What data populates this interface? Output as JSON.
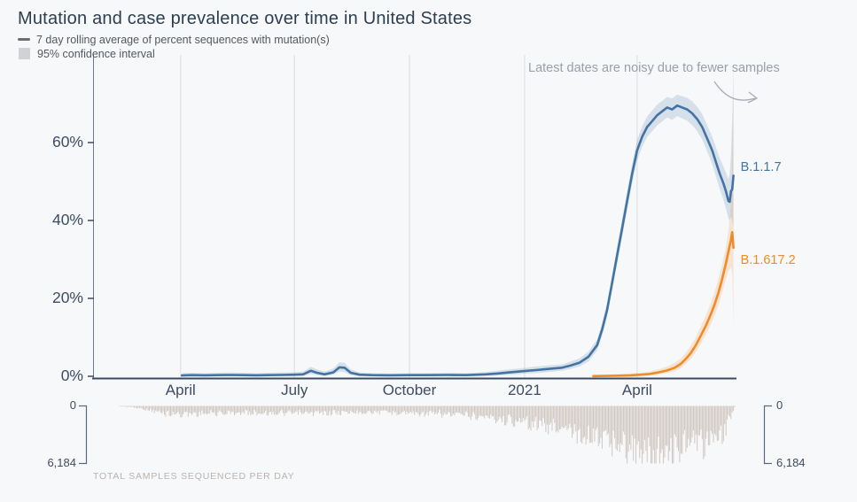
{
  "title": "Mutation and case prevalence over time in United States",
  "legend": {
    "rolling_average": "7 day rolling average of percent sequences with mutation(s)",
    "confidence_interval": "95% confidence interval"
  },
  "annotation": "Latest dates are noisy due to fewer samples",
  "chart_data": {
    "type": "line",
    "title": "Mutation and case prevalence over time in United States",
    "x_axis": {
      "ticks": [
        {
          "date": "2020-04-01",
          "label": "April"
        },
        {
          "date": "2020-07-01",
          "label": "July"
        },
        {
          "date": "2020-10-01",
          "label": "October"
        },
        {
          "date": "2021-01-01",
          "label": "2021"
        },
        {
          "date": "2021-04-01",
          "label": "April"
        }
      ],
      "range": [
        "2020-01-22",
        "2021-06-18"
      ]
    },
    "y_axis": {
      "unit": "percent of sequences",
      "ylim": [
        0,
        80
      ],
      "ticks": [
        {
          "value": 0,
          "label": "0%"
        },
        {
          "value": 20,
          "label": "20%"
        },
        {
          "value": 40,
          "label": "40%"
        },
        {
          "value": 60,
          "label": "60%"
        }
      ]
    },
    "series": [
      {
        "name": "B.1.1.7",
        "color": "#4273a3",
        "ci_color": "rgba(66,115,163,0.18)",
        "points": [
          [
            "2020-04-02",
            0.2,
            0,
            0.8
          ],
          [
            "2020-04-10",
            0.3,
            0,
            0.9
          ],
          [
            "2020-04-20",
            0.25,
            0,
            0.8
          ],
          [
            "2020-05-01",
            0.3,
            0,
            0.9
          ],
          [
            "2020-05-10",
            0.35,
            0,
            1.0
          ],
          [
            "2020-05-20",
            0.3,
            0,
            0.9
          ],
          [
            "2020-06-01",
            0.25,
            0,
            0.8
          ],
          [
            "2020-06-10",
            0.3,
            0,
            0.9
          ],
          [
            "2020-06-20",
            0.35,
            0,
            1.0
          ],
          [
            "2020-07-01",
            0.4,
            0,
            1.1
          ],
          [
            "2020-07-08",
            0.5,
            0.1,
            1.2
          ],
          [
            "2020-07-14",
            1.4,
            0.6,
            2.4
          ],
          [
            "2020-07-19",
            0.9,
            0.3,
            1.8
          ],
          [
            "2020-07-25",
            0.5,
            0.1,
            1.2
          ],
          [
            "2020-08-01",
            1.0,
            0.4,
            2.0
          ],
          [
            "2020-08-06",
            2.3,
            1.2,
            3.6
          ],
          [
            "2020-08-10",
            2.2,
            1.1,
            3.5
          ],
          [
            "2020-08-15",
            0.9,
            0.3,
            1.8
          ],
          [
            "2020-08-22",
            0.4,
            0,
            1.0
          ],
          [
            "2020-09-01",
            0.3,
            0,
            0.8
          ],
          [
            "2020-09-15",
            0.25,
            0,
            0.7
          ],
          [
            "2020-10-01",
            0.3,
            0,
            0.8
          ],
          [
            "2020-10-15",
            0.3,
            0,
            0.8
          ],
          [
            "2020-11-01",
            0.35,
            0,
            0.9
          ],
          [
            "2020-11-15",
            0.3,
            0,
            0.8
          ],
          [
            "2020-12-01",
            0.5,
            0.1,
            1.1
          ],
          [
            "2020-12-10",
            0.7,
            0.2,
            1.4
          ],
          [
            "2020-12-20",
            1.0,
            0.4,
            1.8
          ],
          [
            "2020-12-27",
            1.2,
            0.5,
            2.0
          ],
          [
            "2021-01-03",
            1.4,
            0.7,
            2.2
          ],
          [
            "2021-01-10",
            1.6,
            0.8,
            2.5
          ],
          [
            "2021-01-17",
            1.8,
            1.0,
            2.7
          ],
          [
            "2021-01-24",
            2.0,
            1.2,
            2.9
          ],
          [
            "2021-01-31",
            2.2,
            1.4,
            3.1
          ],
          [
            "2021-02-07",
            2.8,
            1.9,
            3.8
          ],
          [
            "2021-02-14",
            3.5,
            2.5,
            4.6
          ],
          [
            "2021-02-21",
            5.0,
            3.8,
            6.3
          ],
          [
            "2021-02-28",
            8.0,
            6.6,
            9.5
          ],
          [
            "2021-03-04",
            12,
            10.4,
            13.7
          ],
          [
            "2021-03-08",
            17,
            15.2,
            18.9
          ],
          [
            "2021-03-12",
            24,
            22,
            26.1
          ],
          [
            "2021-03-16",
            31,
            28.8,
            33.3
          ],
          [
            "2021-03-20",
            38,
            35.7,
            40.4
          ],
          [
            "2021-03-24",
            45,
            42.6,
            47.5
          ],
          [
            "2021-03-28",
            52,
            49.5,
            54.6
          ],
          [
            "2021-04-01",
            58,
            55.4,
            60.7
          ],
          [
            "2021-04-05",
            61.5,
            58.9,
            64.2
          ],
          [
            "2021-04-09",
            64,
            61.4,
            66.7
          ],
          [
            "2021-04-13",
            65.5,
            62.9,
            68.2
          ],
          [
            "2021-04-17",
            67,
            64.4,
            69.7
          ],
          [
            "2021-04-21",
            68,
            65.4,
            70.7
          ],
          [
            "2021-04-25",
            69,
            66.4,
            71.7
          ],
          [
            "2021-04-29",
            68.5,
            65.8,
            71.3
          ],
          [
            "2021-05-03",
            69.5,
            66.8,
            72.3
          ],
          [
            "2021-05-07",
            69,
            66.2,
            71.9
          ],
          [
            "2021-05-11",
            68.5,
            65.6,
            71.5
          ],
          [
            "2021-05-15",
            67.5,
            64.5,
            70.6
          ],
          [
            "2021-05-19",
            66,
            62.9,
            69.2
          ],
          [
            "2021-05-23",
            64,
            60.8,
            67.3
          ],
          [
            "2021-05-27",
            61,
            57.7,
            64.4
          ],
          [
            "2021-05-31",
            58,
            54.5,
            61.6
          ],
          [
            "2021-06-03",
            55,
            51.3,
            58.8
          ],
          [
            "2021-06-06",
            52,
            48.1,
            56
          ],
          [
            "2021-06-09",
            49.5,
            45.3,
            53.8
          ],
          [
            "2021-06-11",
            47.5,
            43,
            52.3
          ],
          [
            "2021-06-13",
            45,
            40.5,
            50.5
          ],
          [
            "2021-06-14",
            44.8,
            40,
            52
          ],
          [
            "2021-06-15",
            47.5,
            41,
            57
          ],
          [
            "2021-06-16",
            48,
            40,
            66
          ],
          [
            "2021-06-17",
            51.5,
            38,
            80
          ]
        ]
      },
      {
        "name": "B.1.617.2",
        "color": "#f08b25",
        "ci_color": "rgba(240,139,37,0.18)",
        "points": [
          [
            "2021-02-25",
            0.05,
            0,
            0.3
          ],
          [
            "2021-03-07",
            0.1,
            0,
            0.4
          ],
          [
            "2021-03-17",
            0.15,
            0,
            0.5
          ],
          [
            "2021-03-27",
            0.25,
            0,
            0.7
          ],
          [
            "2021-04-04",
            0.4,
            0.1,
            0.9
          ],
          [
            "2021-04-11",
            0.6,
            0.2,
            1.2
          ],
          [
            "2021-04-18",
            1.0,
            0.4,
            1.8
          ],
          [
            "2021-04-25",
            1.5,
            0.8,
            2.5
          ],
          [
            "2021-05-01",
            2.2,
            1.3,
            3.4
          ],
          [
            "2021-05-06",
            3.2,
            2.1,
            4.6
          ],
          [
            "2021-05-10",
            4.5,
            3.2,
            6.1
          ],
          [
            "2021-05-14",
            6.0,
            4.5,
            7.9
          ],
          [
            "2021-05-18",
            8.0,
            6.2,
            10.1
          ],
          [
            "2021-05-22",
            10.5,
            8.4,
            12.9
          ],
          [
            "2021-05-26",
            13,
            10.7,
            15.6
          ],
          [
            "2021-05-30",
            16,
            13.4,
            18.9
          ],
          [
            "2021-06-02",
            18.5,
            15.6,
            21.7
          ],
          [
            "2021-06-05",
            21.5,
            18.3,
            25
          ],
          [
            "2021-06-08",
            25,
            21.5,
            28.8
          ],
          [
            "2021-06-11",
            29,
            25,
            33.3
          ],
          [
            "2021-06-13",
            32,
            27,
            37.5
          ],
          [
            "2021-06-15",
            35,
            28,
            44
          ],
          [
            "2021-06-16",
            37,
            26,
            58
          ],
          [
            "2021-06-17",
            33,
            13,
            75
          ]
        ]
      }
    ],
    "samples_histogram": {
      "caption": "TOTAL SAMPLES SEQUENCED PER DAY",
      "axis_top_label": "0",
      "axis_bottom_label": "6,184",
      "max_samples_per_day": 6184,
      "bar_color": "#cbc2ba",
      "daily_envelope": [
        [
          "2020-02-12",
          50
        ],
        [
          "2020-02-20",
          110
        ],
        [
          "2020-03-01",
          300
        ],
        [
          "2020-03-12",
          650
        ],
        [
          "2020-03-20",
          900
        ],
        [
          "2020-04-01",
          950
        ],
        [
          "2020-04-15",
          900
        ],
        [
          "2020-05-01",
          850
        ],
        [
          "2020-05-15",
          800
        ],
        [
          "2020-06-01",
          800
        ],
        [
          "2020-06-15",
          850
        ],
        [
          "2020-07-01",
          900
        ],
        [
          "2020-07-15",
          850
        ],
        [
          "2020-08-01",
          800
        ],
        [
          "2020-08-15",
          750
        ],
        [
          "2020-09-01",
          700
        ],
        [
          "2020-09-15",
          750
        ],
        [
          "2020-10-01",
          800
        ],
        [
          "2020-10-15",
          900
        ],
        [
          "2020-11-01",
          1000
        ],
        [
          "2020-11-15",
          1100
        ],
        [
          "2020-12-01",
          1300
        ],
        [
          "2020-12-15",
          1600
        ],
        [
          "2021-01-01",
          1900
        ],
        [
          "2021-01-15",
          2300
        ],
        [
          "2021-02-01",
          2700
        ],
        [
          "2021-02-15",
          3200
        ],
        [
          "2021-03-01",
          3700
        ],
        [
          "2021-03-15",
          4300
        ],
        [
          "2021-04-01",
          5200
        ],
        [
          "2021-04-10",
          5600
        ],
        [
          "2021-04-20",
          5300
        ],
        [
          "2021-05-01",
          5000
        ],
        [
          "2021-05-15",
          4700
        ],
        [
          "2021-06-01",
          4000
        ],
        [
          "2021-06-08",
          3200
        ],
        [
          "2021-06-12",
          2300
        ],
        [
          "2021-06-15",
          1300
        ],
        [
          "2021-06-17",
          500
        ],
        [
          "2021-06-18",
          150
        ]
      ]
    }
  }
}
